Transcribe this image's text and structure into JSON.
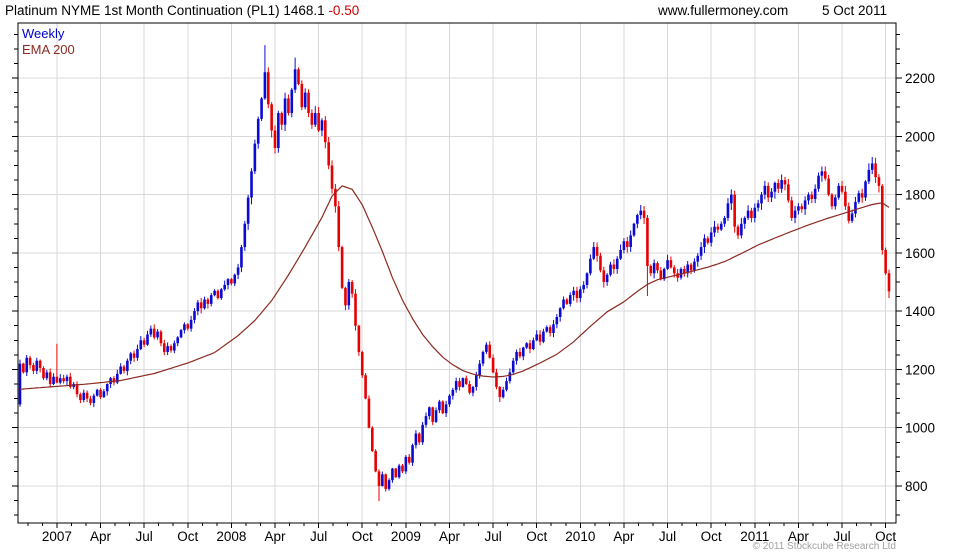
{
  "header": {
    "title": "Platinum NYME 1st Month Continuation (PL1) 1468.1",
    "change": "-0.50",
    "website": "www.fullermoney.com",
    "date": "5 Oct 2011"
  },
  "legend": {
    "series1": "Weekly",
    "series2": "EMA 200"
  },
  "footer": {
    "copyright": "© 2011 Stockcube Research Ltd"
  },
  "colors": {
    "up": "#0a0ad2",
    "down": "#e60000",
    "ema": "#8b2a22",
    "grid": "#d8d8d8",
    "axis": "#000000",
    "change_text": "#cc0000",
    "copyright_text": "#a0a0a0"
  },
  "chart_data": {
    "type": "candlestick",
    "title": "Platinum NYME 1st Month Continuation (PL1)",
    "timeframe": "Weekly",
    "overlay": "EMA 200",
    "last_price": 1468.1,
    "change": -0.5,
    "x_start": "Oct 2006",
    "x_end": "Oct 2011",
    "x_tick_labels": [
      "2007",
      "Apr",
      "Jul",
      "Oct",
      "2008",
      "Apr",
      "Jul",
      "Oct",
      "2009",
      "Apr",
      "Jul",
      "Oct",
      "2010",
      "Apr",
      "Jul",
      "Oct",
      "2011",
      "Apr",
      "Jul",
      "Oct"
    ],
    "y_ticks": [
      800,
      1000,
      1200,
      1400,
      1600,
      1800,
      2000,
      2200
    ],
    "y_minor_step": 50,
    "y_minor_range": [
      700,
      2350
    ],
    "y_plot_range": [
      673,
      2389
    ],
    "first_tick_week": 11,
    "weeks_per_tick": 13,
    "grid": true,
    "legend_position": "top-left",
    "first_open": 1080,
    "weekly_closes": [
      1220,
      1190,
      1240,
      1215,
      1195,
      1230,
      1205,
      1170,
      1190,
      1150,
      1175,
      1155,
      1170,
      1160,
      1175,
      1140,
      1150,
      1115,
      1095,
      1120,
      1100,
      1085,
      1110,
      1130,
      1105,
      1125,
      1150,
      1170,
      1155,
      1185,
      1210,
      1195,
      1230,
      1255,
      1240,
      1270,
      1300,
      1285,
      1320,
      1340,
      1310,
      1330,
      1290,
      1260,
      1280,
      1265,
      1290,
      1310,
      1335,
      1355,
      1340,
      1370,
      1400,
      1430,
      1410,
      1440,
      1425,
      1455,
      1470,
      1445,
      1475,
      1490,
      1510,
      1495,
      1525,
      1550,
      1620,
      1700,
      1790,
      1880,
      1975,
      2060,
      2130,
      2220,
      2110,
      2020,
      1960,
      2080,
      2040,
      2130,
      2080,
      2160,
      2230,
      2180,
      2100,
      2150,
      2080,
      2040,
      2080,
      2020,
      2055,
      1980,
      1900,
      1820,
      1760,
      1620,
      1480,
      1420,
      1500,
      1460,
      1350,
      1260,
      1180,
      1100,
      1000,
      920,
      850,
      800,
      840,
      790,
      820,
      860,
      830,
      870,
      850,
      900,
      880,
      940,
      980,
      950,
      1010,
      1040,
      1070,
      1020,
      1060,
      1090,
      1050,
      1080,
      1110,
      1130,
      1160,
      1140,
      1170,
      1150,
      1120,
      1140,
      1180,
      1220,
      1260,
      1285,
      1240,
      1190,
      1140,
      1105,
      1130,
      1160,
      1190,
      1230,
      1260,
      1245,
      1275,
      1290,
      1270,
      1300,
      1320,
      1295,
      1330,
      1345,
      1325,
      1355,
      1380,
      1410,
      1440,
      1425,
      1455,
      1470,
      1445,
      1475,
      1490,
      1530,
      1580,
      1620,
      1590,
      1540,
      1500,
      1525,
      1560,
      1545,
      1580,
      1610,
      1640,
      1620,
      1660,
      1700,
      1730,
      1745,
      1720,
      1555,
      1530,
      1565,
      1540,
      1510,
      1545,
      1575,
      1550,
      1530,
      1515,
      1545,
      1530,
      1560,
      1540,
      1570,
      1590,
      1620,
      1650,
      1635,
      1670,
      1690,
      1680,
      1700,
      1720,
      1770,
      1800,
      1690,
      1660,
      1700,
      1720,
      1745,
      1720,
      1755,
      1770,
      1800,
      1830,
      1790,
      1810,
      1840,
      1820,
      1850,
      1835,
      1780,
      1720,
      1745,
      1760,
      1750,
      1780,
      1800,
      1785,
      1820,
      1865,
      1880,
      1855,
      1800,
      1760,
      1790,
      1830,
      1810,
      1760,
      1710,
      1735,
      1775,
      1805,
      1790,
      1845,
      1885,
      1907,
      1860,
      1830,
      1610,
      1530,
      1468
    ],
    "wick_overrides": {
      "0": {
        "low": 1072
      },
      "11": {
        "high": 1288
      },
      "73": {
        "high": 2313
      },
      "82": {
        "high": 2270
      },
      "107": {
        "low": 748
      },
      "143": {
        "low": 1088
      },
      "187": {
        "low": 1452
      },
      "259": {
        "low": 1445
      }
    },
    "ema_anchors": [
      [
        0,
        1132
      ],
      [
        10,
        1141
      ],
      [
        20,
        1150
      ],
      [
        30,
        1162
      ],
      [
        40,
        1186
      ],
      [
        50,
        1222
      ],
      [
        58,
        1258
      ],
      [
        65,
        1316
      ],
      [
        70,
        1368
      ],
      [
        75,
        1436
      ],
      [
        80,
        1524
      ],
      [
        85,
        1620
      ],
      [
        90,
        1722
      ],
      [
        93,
        1795
      ],
      [
        96,
        1830
      ],
      [
        99,
        1818
      ],
      [
        102,
        1765
      ],
      [
        105,
        1688
      ],
      [
        108,
        1605
      ],
      [
        111,
        1515
      ],
      [
        114,
        1438
      ],
      [
        117,
        1374
      ],
      [
        120,
        1320
      ],
      [
        123,
        1278
      ],
      [
        126,
        1242
      ],
      [
        129,
        1216
      ],
      [
        132,
        1196
      ],
      [
        135,
        1184
      ],
      [
        138,
        1177
      ],
      [
        141,
        1174
      ],
      [
        144,
        1176
      ],
      [
        147,
        1183
      ],
      [
        150,
        1195
      ],
      [
        155,
        1222
      ],
      [
        160,
        1252
      ],
      [
        165,
        1295
      ],
      [
        170,
        1348
      ],
      [
        175,
        1398
      ],
      [
        180,
        1432
      ],
      [
        184,
        1468
      ],
      [
        187,
        1492
      ],
      [
        190,
        1508
      ],
      [
        195,
        1522
      ],
      [
        200,
        1536
      ],
      [
        205,
        1551
      ],
      [
        210,
        1570
      ],
      [
        215,
        1598
      ],
      [
        220,
        1627
      ],
      [
        225,
        1651
      ],
      [
        230,
        1674
      ],
      [
        235,
        1696
      ],
      [
        240,
        1716
      ],
      [
        245,
        1734
      ],
      [
        250,
        1752
      ],
      [
        254,
        1766
      ],
      [
        257,
        1772
      ],
      [
        259,
        1756
      ]
    ]
  }
}
